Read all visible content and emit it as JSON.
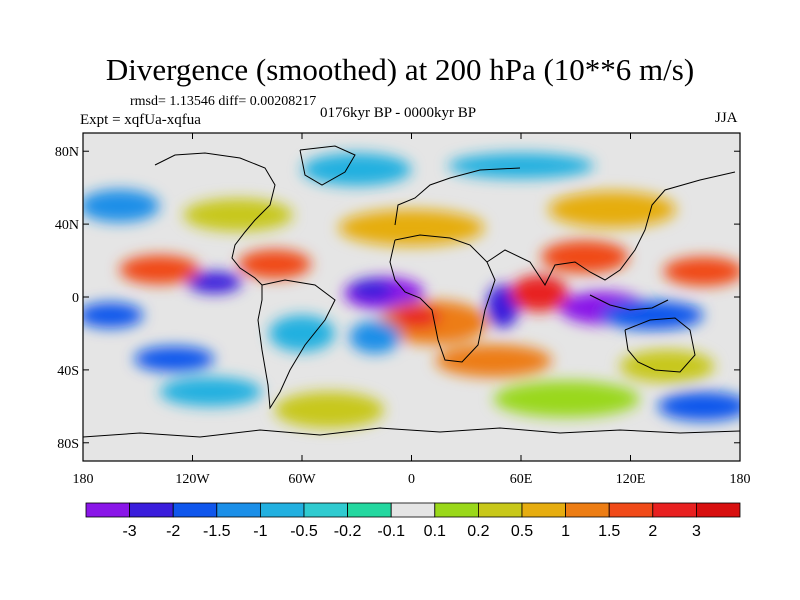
{
  "title": "Divergence (smoothed) at 200 hPa (10**6 m/s)",
  "stats": "rmsd= 1.13546 diff= 0.00208217",
  "experiment": "Expt = xqfUa-xqfua",
  "period": "0176kyr BP - 0000kyr BP",
  "season": "JJA",
  "map": {
    "lon_range": [
      -180,
      180
    ],
    "lat_range": [
      -90,
      90
    ],
    "lat_ticks": [
      {
        "value": 80,
        "label": "80N"
      },
      {
        "value": 40,
        "label": "40N"
      },
      {
        "value": 0,
        "label": "0"
      },
      {
        "value": -40,
        "label": "40S"
      },
      {
        "value": -80,
        "label": "80S"
      }
    ],
    "lon_ticks": [
      {
        "value": -180,
        "label": "180"
      },
      {
        "value": -120,
        "label": "120W"
      },
      {
        "value": -60,
        "label": "60W"
      },
      {
        "value": 0,
        "label": "0"
      },
      {
        "value": 60,
        "label": "60E"
      },
      {
        "value": 120,
        "label": "120E"
      },
      {
        "value": 180,
        "label": "180"
      }
    ],
    "background_color": "#e5e5e5"
  },
  "colorbar": {
    "labels": [
      "-3",
      "-2",
      "-1.5",
      "-1",
      "-0.5",
      "-0.2",
      "-0.1",
      "0.1",
      "0.2",
      "0.5",
      "1",
      "1.5",
      "2",
      "3"
    ],
    "colors": [
      "#8a16e8",
      "#3a1ddc",
      "#0f56ec",
      "#1b8fe8",
      "#22b0e0",
      "#30cbd0",
      "#24d8a0",
      "#e5e5e5",
      "#9ad81a",
      "#c8c81a",
      "#e6ad10",
      "#ed7d14",
      "#f04a18",
      "#e82020",
      "#d80f0f"
    ]
  },
  "features": [
    {
      "lon": -15,
      "lat": 2,
      "rlon": 22,
      "rlat": 9,
      "level": 0
    },
    {
      "lon": -22,
      "lat": 4,
      "rlon": 12,
      "rlat": 6,
      "level": 1
    },
    {
      "lon": 12,
      "lat": -14,
      "rlon": 30,
      "rlat": 12,
      "level": 11
    },
    {
      "lon": 3,
      "lat": -11,
      "rlon": 13,
      "rlat": 6,
      "level": 13
    },
    {
      "lon": 105,
      "lat": -6,
      "rlon": 24,
      "rlat": 9,
      "level": 0
    },
    {
      "lon": 132,
      "lat": -10,
      "rlon": 28,
      "rlat": 8,
      "level": 2
    },
    {
      "lon": 50,
      "lat": -5,
      "rlon": 9,
      "rlat": 12,
      "level": 1
    },
    {
      "lon": -165,
      "lat": -10,
      "rlon": 18,
      "rlat": 7,
      "level": 2
    },
    {
      "lon": -108,
      "lat": 8,
      "rlon": 15,
      "rlat": 6,
      "level": 1
    },
    {
      "lon": -75,
      "lat": 18,
      "rlon": 20,
      "rlat": 8,
      "level": 12
    },
    {
      "lon": -138,
      "lat": 15,
      "rlon": 22,
      "rlat": 8,
      "level": 12
    },
    {
      "lon": 70,
      "lat": 2,
      "rlon": 16,
      "rlat": 10,
      "level": 13
    },
    {
      "lon": 95,
      "lat": 22,
      "rlon": 24,
      "rlat": 9,
      "level": 12
    },
    {
      "lon": 160,
      "lat": 14,
      "rlon": 22,
      "rlat": 8,
      "level": 12
    },
    {
      "lon": -130,
      "lat": -34,
      "rlon": 22,
      "rlat": 7,
      "level": 2
    },
    {
      "lon": -110,
      "lat": -52,
      "rlon": 28,
      "rlat": 8,
      "level": 4
    },
    {
      "lon": -60,
      "lat": -20,
      "rlon": 18,
      "rlat": 10,
      "level": 4
    },
    {
      "lon": -20,
      "lat": -22,
      "rlon": 14,
      "rlat": 9,
      "level": 3
    },
    {
      "lon": 45,
      "lat": -35,
      "rlon": 32,
      "rlat": 9,
      "level": 11
    },
    {
      "lon": 140,
      "lat": -38,
      "rlon": 26,
      "rlat": 9,
      "level": 9
    },
    {
      "lon": -45,
      "lat": -62,
      "rlon": 30,
      "rlat": 10,
      "level": 9
    },
    {
      "lon": 85,
      "lat": -56,
      "rlon": 40,
      "rlat": 10,
      "level": 8
    },
    {
      "lon": 0,
      "lat": 38,
      "rlon": 40,
      "rlat": 10,
      "level": 10
    },
    {
      "lon": -95,
      "lat": 45,
      "rlon": 30,
      "rlat": 9,
      "level": 9
    },
    {
      "lon": 110,
      "lat": 48,
      "rlon": 35,
      "rlat": 10,
      "level": 10
    },
    {
      "lon": -30,
      "lat": 70,
      "rlon": 30,
      "rlat": 9,
      "level": 4
    },
    {
      "lon": 60,
      "lat": 72,
      "rlon": 40,
      "rlat": 7,
      "level": 4
    },
    {
      "lon": -160,
      "lat": 50,
      "rlon": 22,
      "rlat": 9,
      "level": 3
    },
    {
      "lon": 160,
      "lat": -60,
      "rlon": 25,
      "rlat": 8,
      "level": 2
    }
  ]
}
